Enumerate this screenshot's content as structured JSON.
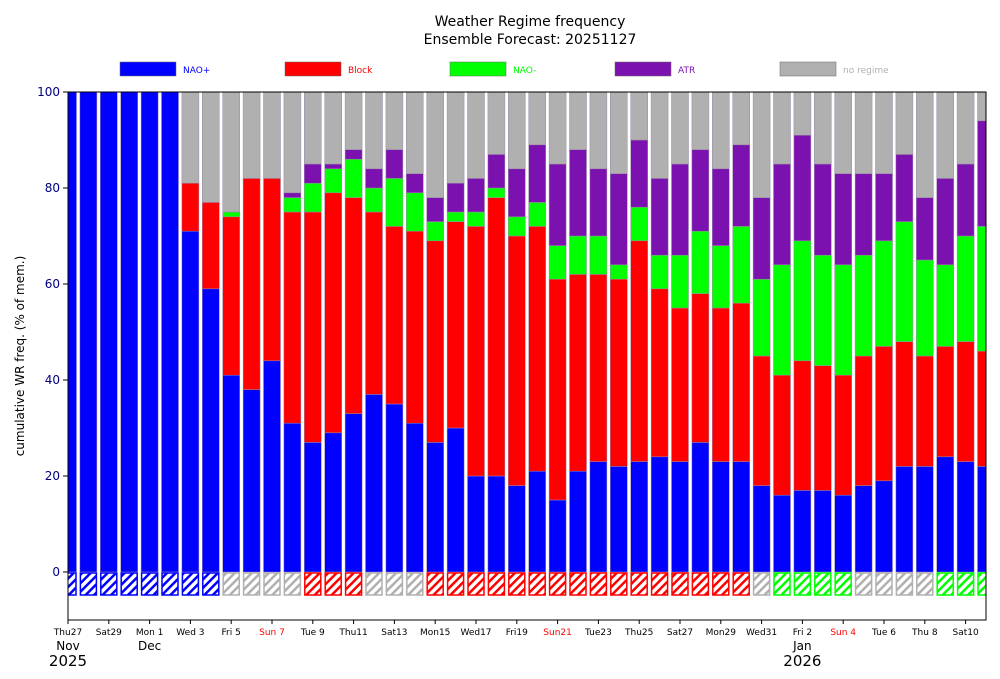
{
  "chart_data": {
    "type": "bar",
    "stacked": true,
    "title": "Weather Regime frequency",
    "subtitle": "Ensemble Forecast: 20251127",
    "ylabel": "cumulative WR freq. (% of mem.)",
    "xlabel": "",
    "ylim": [
      -10,
      100
    ],
    "yticks": [
      0,
      20,
      40,
      60,
      80,
      100
    ],
    "grid": false,
    "legend_placement": "top",
    "dates": [
      "2025-11-27",
      "2025-11-28",
      "2025-11-29",
      "2025-11-30",
      "2025-12-01",
      "2025-12-02",
      "2025-12-03",
      "2025-12-04",
      "2025-12-05",
      "2025-12-06",
      "2025-12-07",
      "2025-12-08",
      "2025-12-09",
      "2025-12-10",
      "2025-12-11",
      "2025-12-12",
      "2025-12-13",
      "2025-12-14",
      "2025-12-15",
      "2025-12-16",
      "2025-12-17",
      "2025-12-18",
      "2025-12-19",
      "2025-12-20",
      "2025-12-21",
      "2025-12-22",
      "2025-12-23",
      "2025-12-24",
      "2025-12-25",
      "2025-12-26",
      "2025-12-27",
      "2025-12-28",
      "2025-12-29",
      "2025-12-30",
      "2025-12-31",
      "2026-01-01",
      "2026-01-02",
      "2026-01-03",
      "2026-01-04",
      "2026-01-05",
      "2026-01-06",
      "2026-01-07",
      "2026-01-08",
      "2026-01-09",
      "2026-01-10",
      "2026-01-11"
    ],
    "xtick_labels": [
      {
        "date": "2025-11-27",
        "label": "Thu27",
        "color": "#000000"
      },
      {
        "date": "2025-11-29",
        "label": "Sat29",
        "color": "#000000"
      },
      {
        "date": "2025-12-01",
        "label": "Mon 1",
        "color": "#000000"
      },
      {
        "date": "2025-12-03",
        "label": "Wed 3",
        "color": "#000000"
      },
      {
        "date": "2025-12-05",
        "label": "Fri 5",
        "color": "#000000"
      },
      {
        "date": "2025-12-07",
        "label": "Sun 7",
        "color": "#ff0000"
      },
      {
        "date": "2025-12-09",
        "label": "Tue 9",
        "color": "#000000"
      },
      {
        "date": "2025-12-11",
        "label": "Thu11",
        "color": "#000000"
      },
      {
        "date": "2025-12-13",
        "label": "Sat13",
        "color": "#000000"
      },
      {
        "date": "2025-12-15",
        "label": "Mon15",
        "color": "#000000"
      },
      {
        "date": "2025-12-17",
        "label": "Wed17",
        "color": "#000000"
      },
      {
        "date": "2025-12-19",
        "label": "Fri19",
        "color": "#000000"
      },
      {
        "date": "2025-12-21",
        "label": "Sun21",
        "color": "#ff0000"
      },
      {
        "date": "2025-12-23",
        "label": "Tue23",
        "color": "#000000"
      },
      {
        "date": "2025-12-25",
        "label": "Thu25",
        "color": "#000000"
      },
      {
        "date": "2025-12-27",
        "label": "Sat27",
        "color": "#000000"
      },
      {
        "date": "2025-12-29",
        "label": "Mon29",
        "color": "#000000"
      },
      {
        "date": "2025-12-31",
        "label": "Wed31",
        "color": "#000000"
      },
      {
        "date": "2026-01-02",
        "label": "Fri 2",
        "color": "#000000"
      },
      {
        "date": "2026-01-04",
        "label": "Sun 4",
        "color": "#ff0000"
      },
      {
        "date": "2026-01-06",
        "label": "Tue 6",
        "color": "#000000"
      },
      {
        "date": "2026-01-08",
        "label": "Thu 8",
        "color": "#000000"
      },
      {
        "date": "2026-01-10",
        "label": "Sat10",
        "color": "#000000"
      }
    ],
    "month_labels": [
      {
        "date": "2025-11-27",
        "label": "Nov"
      },
      {
        "date": "2025-12-01",
        "label": "Dec"
      },
      {
        "date": "2026-01-02",
        "label": "Jan"
      }
    ],
    "year_labels": [
      {
        "date": "2025-11-27",
        "label": "2025"
      },
      {
        "date": "2026-01-02",
        "label": "2026"
      }
    ],
    "series": [
      {
        "name": "NAO+",
        "color": "#0000ff",
        "values": [
          100,
          100,
          100,
          100,
          100,
          100,
          71,
          59,
          41,
          38,
          44,
          31,
          27,
          29,
          33,
          37,
          35,
          31,
          27,
          30,
          20,
          20,
          18,
          21,
          15,
          21,
          23,
          22,
          23,
          24,
          23,
          27,
          23,
          23,
          18,
          16,
          17,
          17,
          16,
          18,
          19,
          22,
          22,
          24,
          23,
          22
        ]
      },
      {
        "name": "Block",
        "color": "#ff0000",
        "values": [
          0,
          0,
          0,
          0,
          0,
          0,
          10,
          18,
          33,
          44,
          38,
          44,
          48,
          50,
          45,
          38,
          37,
          40,
          42,
          43,
          52,
          58,
          52,
          51,
          46,
          41,
          39,
          39,
          46,
          35,
          32,
          31,
          32,
          33,
          27,
          25,
          27,
          26,
          25,
          27,
          28,
          26,
          23,
          23,
          25,
          24
        ]
      },
      {
        "name": "NAO-",
        "color": "#00ff00",
        "values": [
          0,
          0,
          0,
          0,
          0,
          0,
          0,
          0,
          1,
          0,
          0,
          3,
          6,
          5,
          8,
          5,
          10,
          8,
          4,
          2,
          3,
          2,
          4,
          5,
          7,
          8,
          8,
          3,
          7,
          7,
          11,
          13,
          13,
          16,
          16,
          23,
          25,
          23,
          23,
          21,
          22,
          25,
          20,
          17,
          22,
          26
        ]
      },
      {
        "name": "ATR",
        "color": "#7b12b0",
        "values": [
          0,
          0,
          0,
          0,
          0,
          0,
          0,
          0,
          0,
          0,
          0,
          1,
          4,
          1,
          2,
          4,
          6,
          4,
          5,
          6,
          7,
          7,
          10,
          12,
          17,
          18,
          14,
          19,
          14,
          16,
          19,
          17,
          16,
          17,
          17,
          21,
          22,
          19,
          19,
          17,
          14,
          14,
          13,
          18,
          15,
          22
        ]
      },
      {
        "name": "no regime",
        "color": "#b0b0b0",
        "values": [
          0,
          0,
          0,
          0,
          0,
          0,
          19,
          23,
          25,
          18,
          18,
          21,
          15,
          15,
          12,
          16,
          12,
          17,
          22,
          19,
          18,
          13,
          16,
          11,
          15,
          12,
          16,
          17,
          10,
          18,
          15,
          12,
          16,
          11,
          22,
          15,
          9,
          15,
          17,
          17,
          17,
          13,
          22,
          18,
          15,
          6
        ]
      }
    ],
    "dominant_regime": [
      "NAO+",
      "NAO+",
      "NAO+",
      "NAO+",
      "NAO+",
      "NAO+",
      "NAO+",
      "NAO+",
      "no regime",
      "no regime",
      "no regime",
      "no regime",
      "Block",
      "Block",
      "Block",
      "no regime",
      "no regime",
      "no regime",
      "Block",
      "Block",
      "Block",
      "Block",
      "Block",
      "Block",
      "Block",
      "Block",
      "Block",
      "Block",
      "Block",
      "Block",
      "Block",
      "Block",
      "Block",
      "Block",
      "no regime",
      "NAO-",
      "NAO-",
      "NAO-",
      "NAO-",
      "no regime",
      "no regime",
      "no regime",
      "no regime",
      "NAO-",
      "NAO-",
      "NAO-"
    ],
    "axis_tick_color": "#000080"
  }
}
